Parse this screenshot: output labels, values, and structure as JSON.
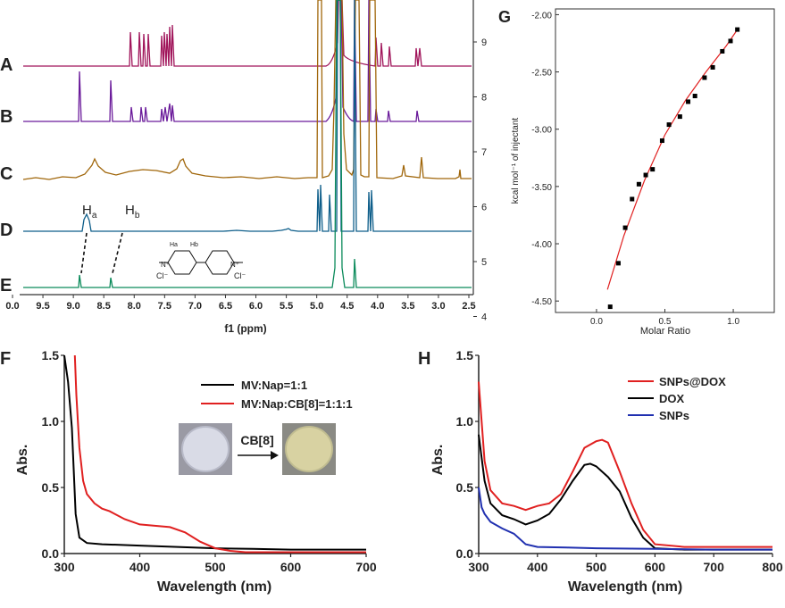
{
  "figure": {
    "panels": {
      "A": "A",
      "B": "B",
      "C": "C",
      "D": "D",
      "E": "E",
      "F": "F",
      "G": "G",
      "H": "H"
    }
  },
  "nmr": {
    "xlabel": "f1 (ppm)",
    "ticks": [
      "0.0",
      "9.5",
      "9.0",
      "8.5",
      "8.0",
      "7.5",
      "7.0",
      "6.5",
      "6.0",
      "5.5",
      "5.0",
      "4.5",
      "4.0",
      "3.5",
      "3.0",
      "2.5"
    ],
    "right_ticks": [
      "9",
      "8",
      "7",
      "6",
      "5",
      "4"
    ],
    "label_ha": "H",
    "label_ha_sub": "a",
    "label_hb": "H",
    "label_hb_sub": "b",
    "structure": {
      "ha": "Ha",
      "hb": "Hb",
      "cl_left": "Cl⁻",
      "cl_right": "Cl⁻",
      "n_left": "N⁺",
      "n_right": "N⁺"
    },
    "colors": {
      "A": "#a0145a",
      "B": "#6a1a9a",
      "C": "#a0660a",
      "D": "#0e5e8a",
      "E": "#0a8a5a"
    }
  },
  "chart_data": [
    {
      "panel": "G",
      "type": "scatter",
      "title": "",
      "xlabel": "Molar Ratio",
      "ylabel": "kcal mol⁻¹ of injectant",
      "xlim": [
        -0.3,
        1.3
      ],
      "ylim": [
        -4.6,
        -1.95
      ],
      "xticks": [
        "0.0",
        "0.5",
        "1.0"
      ],
      "yticks": [
        "-2.00",
        "-2.50",
        "-3.00",
        "-3.50",
        "-4.00",
        "-4.50"
      ],
      "points": {
        "x": [
          0.1,
          0.16,
          0.21,
          0.26,
          0.31,
          0.36,
          0.41,
          0.48,
          0.53,
          0.61,
          0.67,
          0.72,
          0.79,
          0.85,
          0.92,
          0.98,
          1.03
        ],
        "y": [
          -4.55,
          -4.17,
          -3.86,
          -3.61,
          -3.48,
          -3.4,
          -3.35,
          -3.1,
          -2.96,
          -2.89,
          -2.76,
          -2.71,
          -2.55,
          -2.46,
          -2.32,
          -2.23,
          -2.13
        ]
      },
      "fit_x": [
        0.08,
        0.2,
        0.35,
        0.5,
        0.65,
        0.8,
        0.95,
        1.03
      ],
      "fit_y": [
        -4.4,
        -3.93,
        -3.45,
        -3.05,
        -2.75,
        -2.5,
        -2.27,
        -2.13
      ],
      "point_color": "#000000",
      "fit_color": "#e02020"
    },
    {
      "panel": "F",
      "type": "line",
      "title": "",
      "xlabel": "Wavelength (nm)",
      "ylabel": "Abs.",
      "xlim": [
        300,
        700
      ],
      "ylim": [
        0.0,
        1.5
      ],
      "xticks": [
        "300",
        "400",
        "500",
        "600",
        "700"
      ],
      "yticks": [
        "0.0",
        "0.5",
        "1.0",
        "1.5"
      ],
      "series": [
        {
          "name": "MV:Nap=1:1",
          "color": "#000000",
          "x": [
            300,
            305,
            310,
            315,
            320,
            330,
            350,
            400,
            450,
            500,
            550,
            600,
            700
          ],
          "y": [
            1.5,
            1.3,
            0.95,
            0.3,
            0.12,
            0.08,
            0.07,
            0.06,
            0.05,
            0.04,
            0.035,
            0.03,
            0.03
          ]
        },
        {
          "name": "MV:Nap:CB[8]=1:1:1",
          "color": "#e02020",
          "x": [
            314,
            316,
            320,
            325,
            330,
            340,
            350,
            360,
            380,
            400,
            420,
            440,
            460,
            480,
            500,
            520,
            540,
            600,
            700
          ],
          "y": [
            1.5,
            1.2,
            0.8,
            0.55,
            0.45,
            0.38,
            0.34,
            0.32,
            0.26,
            0.22,
            0.21,
            0.2,
            0.16,
            0.09,
            0.04,
            0.02,
            0.01,
            0.01,
            0.01
          ]
        }
      ],
      "legend_position": "top-right",
      "inset": {
        "arrow_label": "CB[8]"
      }
    },
    {
      "panel": "H",
      "type": "line",
      "title": "",
      "xlabel": "Wavelength (nm)",
      "ylabel": "Abs.",
      "xlim": [
        300,
        800
      ],
      "ylim": [
        0.0,
        1.5
      ],
      "xticks": [
        "300",
        "400",
        "500",
        "600",
        "700",
        "800"
      ],
      "yticks": [
        "0.0",
        "0.5",
        "1.0",
        "1.5"
      ],
      "series": [
        {
          "name": "SNPs@DOX",
          "color": "#e02020",
          "x": [
            300,
            310,
            320,
            340,
            360,
            380,
            400,
            420,
            440,
            460,
            480,
            500,
            510,
            520,
            540,
            560,
            580,
            600,
            650,
            700,
            800
          ],
          "y": [
            1.3,
            0.7,
            0.48,
            0.38,
            0.36,
            0.33,
            0.36,
            0.38,
            0.45,
            0.62,
            0.8,
            0.85,
            0.86,
            0.84,
            0.62,
            0.38,
            0.18,
            0.07,
            0.05,
            0.05,
            0.05
          ]
        },
        {
          "name": "DOX",
          "color": "#000000",
          "x": [
            300,
            310,
            320,
            340,
            360,
            380,
            400,
            420,
            440,
            460,
            480,
            490,
            500,
            520,
            540,
            560,
            580,
            600,
            650,
            700,
            800
          ],
          "y": [
            0.9,
            0.55,
            0.38,
            0.29,
            0.26,
            0.22,
            0.25,
            0.3,
            0.41,
            0.55,
            0.67,
            0.68,
            0.66,
            0.58,
            0.47,
            0.27,
            0.12,
            0.04,
            0.03,
            0.03,
            0.03
          ]
        },
        {
          "name": "SNPs",
          "color": "#2030b0",
          "x": [
            300,
            305,
            310,
            320,
            340,
            360,
            380,
            400,
            450,
            500,
            600,
            700,
            800
          ],
          "y": [
            0.5,
            0.35,
            0.3,
            0.24,
            0.19,
            0.15,
            0.07,
            0.05,
            0.045,
            0.04,
            0.035,
            0.03,
            0.03
          ]
        }
      ],
      "legend_position": "top-right"
    }
  ]
}
